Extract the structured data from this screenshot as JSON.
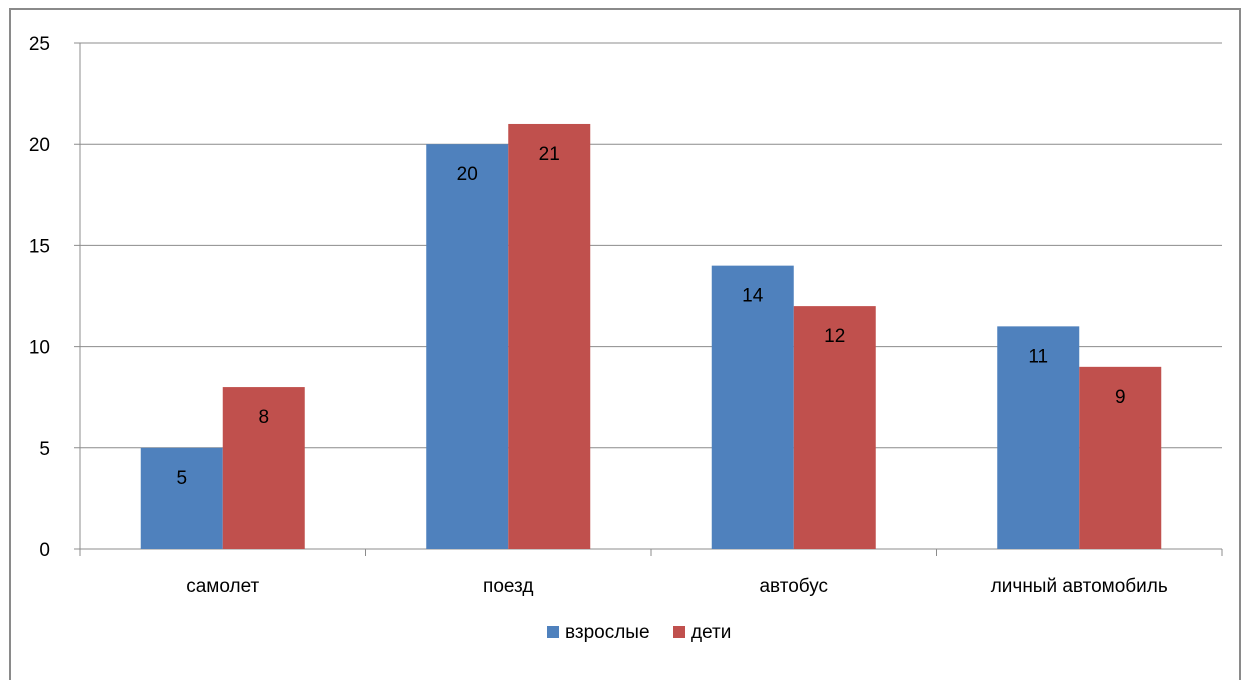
{
  "chart_data": {
    "type": "bar",
    "title": "",
    "xlabel": "",
    "ylabel": "",
    "categories": [
      "самолет",
      "поезд",
      "автобус",
      "личный автомобиль"
    ],
    "series": [
      {
        "name": "взрослые",
        "values": [
          5,
          20,
          14,
          11
        ],
        "color": "#4f81bd"
      },
      {
        "name": "дети",
        "values": [
          8,
          21,
          12,
          9
        ],
        "color": "#c0504d"
      }
    ],
    "ylim": [
      0,
      25
    ],
    "yticks": [
      "0",
      "5",
      "10",
      "15",
      "20",
      "25"
    ],
    "grid": true,
    "legend": "bottom"
  }
}
